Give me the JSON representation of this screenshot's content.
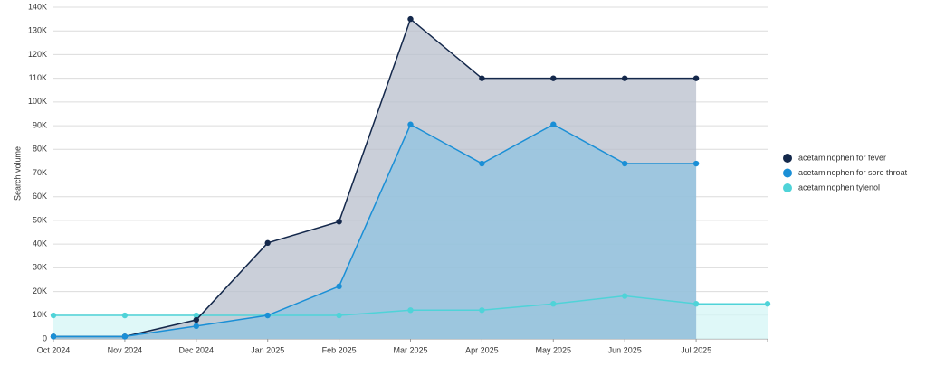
{
  "chart_data": {
    "type": "area",
    "y_label": "Search volume",
    "categories": [
      "Oct 2024",
      "Nov 2024",
      "Dec 2024",
      "Jan 2025",
      "Feb 2025",
      "Mar 2025",
      "Apr 2025",
      "May 2025",
      "Jun 2025",
      "Jul 2025",
      null
    ],
    "series": [
      {
        "name": "acetaminophen for fever",
        "color": "#14284b",
        "fill": "#b8bfcc",
        "values": [
          1000,
          1000,
          8000,
          40500,
          49500,
          135000,
          110000,
          110000,
          110000,
          110000,
          null
        ]
      },
      {
        "name": "acetaminophen for sore throat",
        "color": "#1a8fd6",
        "fill": "#8fc3e0",
        "values": [
          1000,
          1000,
          5400,
          9900,
          22200,
          90500,
          74000,
          90500,
          74000,
          74000,
          null
        ]
      },
      {
        "name": "acetaminophen tylenol",
        "color": "#4fd3d8",
        "fill": "#d4f5f6",
        "values": [
          9900,
          9900,
          9900,
          9900,
          9900,
          12100,
          12100,
          14800,
          18100,
          14800,
          14800
        ]
      }
    ],
    "ylim": [
      0,
      140000
    ],
    "yticks": [
      0,
      {
        "value": 10000,
        "label": "10K"
      },
      {
        "value": 20000,
        "label": "20K"
      },
      {
        "value": 30000,
        "label": "30K"
      },
      {
        "value": 40000,
        "label": "40K"
      },
      {
        "value": 50000,
        "label": "50K"
      },
      {
        "value": 60000,
        "label": "60K"
      },
      {
        "value": 70000,
        "label": "70K"
      },
      {
        "value": 80000,
        "label": "80K"
      },
      {
        "value": 90000,
        "label": "90K"
      },
      {
        "value": 100000,
        "label": "100K"
      },
      {
        "value": 110000,
        "label": "110K"
      },
      {
        "value": 120000,
        "label": "120K"
      },
      {
        "value": 130000,
        "label": "130K"
      },
      {
        "value": 140000,
        "label": "140K"
      }
    ],
    "grid": true
  }
}
